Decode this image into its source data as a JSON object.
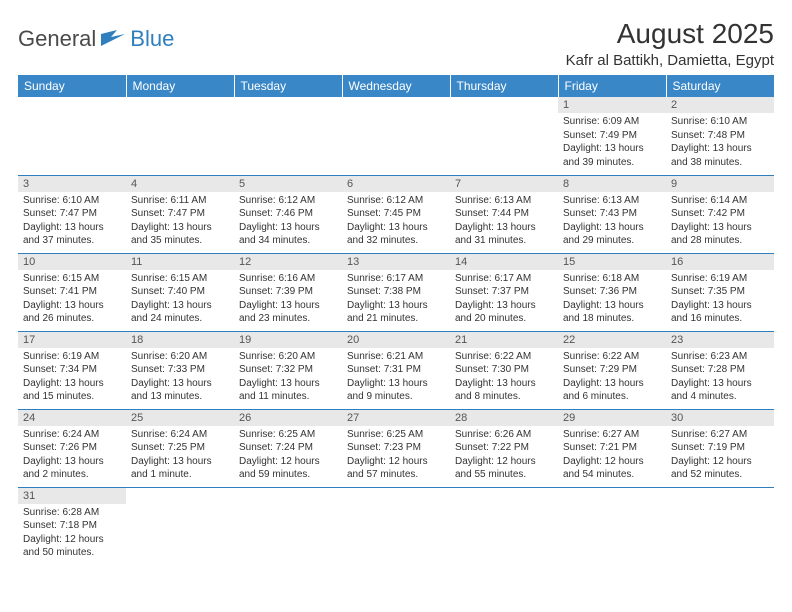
{
  "logo": {
    "general": "General",
    "blue": "Blue"
  },
  "title": "August 2025",
  "location": "Kafr al Battikh, Damietta, Egypt",
  "colors": {
    "header_bg": "#3a87c8",
    "header_text": "#ffffff",
    "daynum_bg": "#e8e8e8",
    "border": "#2f7fbf",
    "logo_blue": "#2f7fbf",
    "logo_gray": "#4a4a4a"
  },
  "weekdays": [
    "Sunday",
    "Monday",
    "Tuesday",
    "Wednesday",
    "Thursday",
    "Friday",
    "Saturday"
  ],
  "grid": [
    [
      null,
      null,
      null,
      null,
      null,
      {
        "n": "1",
        "sr": "Sunrise: 6:09 AM",
        "ss": "Sunset: 7:49 PM",
        "dl": "Daylight: 13 hours and 39 minutes."
      },
      {
        "n": "2",
        "sr": "Sunrise: 6:10 AM",
        "ss": "Sunset: 7:48 PM",
        "dl": "Daylight: 13 hours and 38 minutes."
      }
    ],
    [
      {
        "n": "3",
        "sr": "Sunrise: 6:10 AM",
        "ss": "Sunset: 7:47 PM",
        "dl": "Daylight: 13 hours and 37 minutes."
      },
      {
        "n": "4",
        "sr": "Sunrise: 6:11 AM",
        "ss": "Sunset: 7:47 PM",
        "dl": "Daylight: 13 hours and 35 minutes."
      },
      {
        "n": "5",
        "sr": "Sunrise: 6:12 AM",
        "ss": "Sunset: 7:46 PM",
        "dl": "Daylight: 13 hours and 34 minutes."
      },
      {
        "n": "6",
        "sr": "Sunrise: 6:12 AM",
        "ss": "Sunset: 7:45 PM",
        "dl": "Daylight: 13 hours and 32 minutes."
      },
      {
        "n": "7",
        "sr": "Sunrise: 6:13 AM",
        "ss": "Sunset: 7:44 PM",
        "dl": "Daylight: 13 hours and 31 minutes."
      },
      {
        "n": "8",
        "sr": "Sunrise: 6:13 AM",
        "ss": "Sunset: 7:43 PM",
        "dl": "Daylight: 13 hours and 29 minutes."
      },
      {
        "n": "9",
        "sr": "Sunrise: 6:14 AM",
        "ss": "Sunset: 7:42 PM",
        "dl": "Daylight: 13 hours and 28 minutes."
      }
    ],
    [
      {
        "n": "10",
        "sr": "Sunrise: 6:15 AM",
        "ss": "Sunset: 7:41 PM",
        "dl": "Daylight: 13 hours and 26 minutes."
      },
      {
        "n": "11",
        "sr": "Sunrise: 6:15 AM",
        "ss": "Sunset: 7:40 PM",
        "dl": "Daylight: 13 hours and 24 minutes."
      },
      {
        "n": "12",
        "sr": "Sunrise: 6:16 AM",
        "ss": "Sunset: 7:39 PM",
        "dl": "Daylight: 13 hours and 23 minutes."
      },
      {
        "n": "13",
        "sr": "Sunrise: 6:17 AM",
        "ss": "Sunset: 7:38 PM",
        "dl": "Daylight: 13 hours and 21 minutes."
      },
      {
        "n": "14",
        "sr": "Sunrise: 6:17 AM",
        "ss": "Sunset: 7:37 PM",
        "dl": "Daylight: 13 hours and 20 minutes."
      },
      {
        "n": "15",
        "sr": "Sunrise: 6:18 AM",
        "ss": "Sunset: 7:36 PM",
        "dl": "Daylight: 13 hours and 18 minutes."
      },
      {
        "n": "16",
        "sr": "Sunrise: 6:19 AM",
        "ss": "Sunset: 7:35 PM",
        "dl": "Daylight: 13 hours and 16 minutes."
      }
    ],
    [
      {
        "n": "17",
        "sr": "Sunrise: 6:19 AM",
        "ss": "Sunset: 7:34 PM",
        "dl": "Daylight: 13 hours and 15 minutes."
      },
      {
        "n": "18",
        "sr": "Sunrise: 6:20 AM",
        "ss": "Sunset: 7:33 PM",
        "dl": "Daylight: 13 hours and 13 minutes."
      },
      {
        "n": "19",
        "sr": "Sunrise: 6:20 AM",
        "ss": "Sunset: 7:32 PM",
        "dl": "Daylight: 13 hours and 11 minutes."
      },
      {
        "n": "20",
        "sr": "Sunrise: 6:21 AM",
        "ss": "Sunset: 7:31 PM",
        "dl": "Daylight: 13 hours and 9 minutes."
      },
      {
        "n": "21",
        "sr": "Sunrise: 6:22 AM",
        "ss": "Sunset: 7:30 PM",
        "dl": "Daylight: 13 hours and 8 minutes."
      },
      {
        "n": "22",
        "sr": "Sunrise: 6:22 AM",
        "ss": "Sunset: 7:29 PM",
        "dl": "Daylight: 13 hours and 6 minutes."
      },
      {
        "n": "23",
        "sr": "Sunrise: 6:23 AM",
        "ss": "Sunset: 7:28 PM",
        "dl": "Daylight: 13 hours and 4 minutes."
      }
    ],
    [
      {
        "n": "24",
        "sr": "Sunrise: 6:24 AM",
        "ss": "Sunset: 7:26 PM",
        "dl": "Daylight: 13 hours and 2 minutes."
      },
      {
        "n": "25",
        "sr": "Sunrise: 6:24 AM",
        "ss": "Sunset: 7:25 PM",
        "dl": "Daylight: 13 hours and 1 minute."
      },
      {
        "n": "26",
        "sr": "Sunrise: 6:25 AM",
        "ss": "Sunset: 7:24 PM",
        "dl": "Daylight: 12 hours and 59 minutes."
      },
      {
        "n": "27",
        "sr": "Sunrise: 6:25 AM",
        "ss": "Sunset: 7:23 PM",
        "dl": "Daylight: 12 hours and 57 minutes."
      },
      {
        "n": "28",
        "sr": "Sunrise: 6:26 AM",
        "ss": "Sunset: 7:22 PM",
        "dl": "Daylight: 12 hours and 55 minutes."
      },
      {
        "n": "29",
        "sr": "Sunrise: 6:27 AM",
        "ss": "Sunset: 7:21 PM",
        "dl": "Daylight: 12 hours and 54 minutes."
      },
      {
        "n": "30",
        "sr": "Sunrise: 6:27 AM",
        "ss": "Sunset: 7:19 PM",
        "dl": "Daylight: 12 hours and 52 minutes."
      }
    ],
    [
      {
        "n": "31",
        "sr": "Sunrise: 6:28 AM",
        "ss": "Sunset: 7:18 PM",
        "dl": "Daylight: 12 hours and 50 minutes."
      },
      null,
      null,
      null,
      null,
      null,
      null
    ]
  ]
}
